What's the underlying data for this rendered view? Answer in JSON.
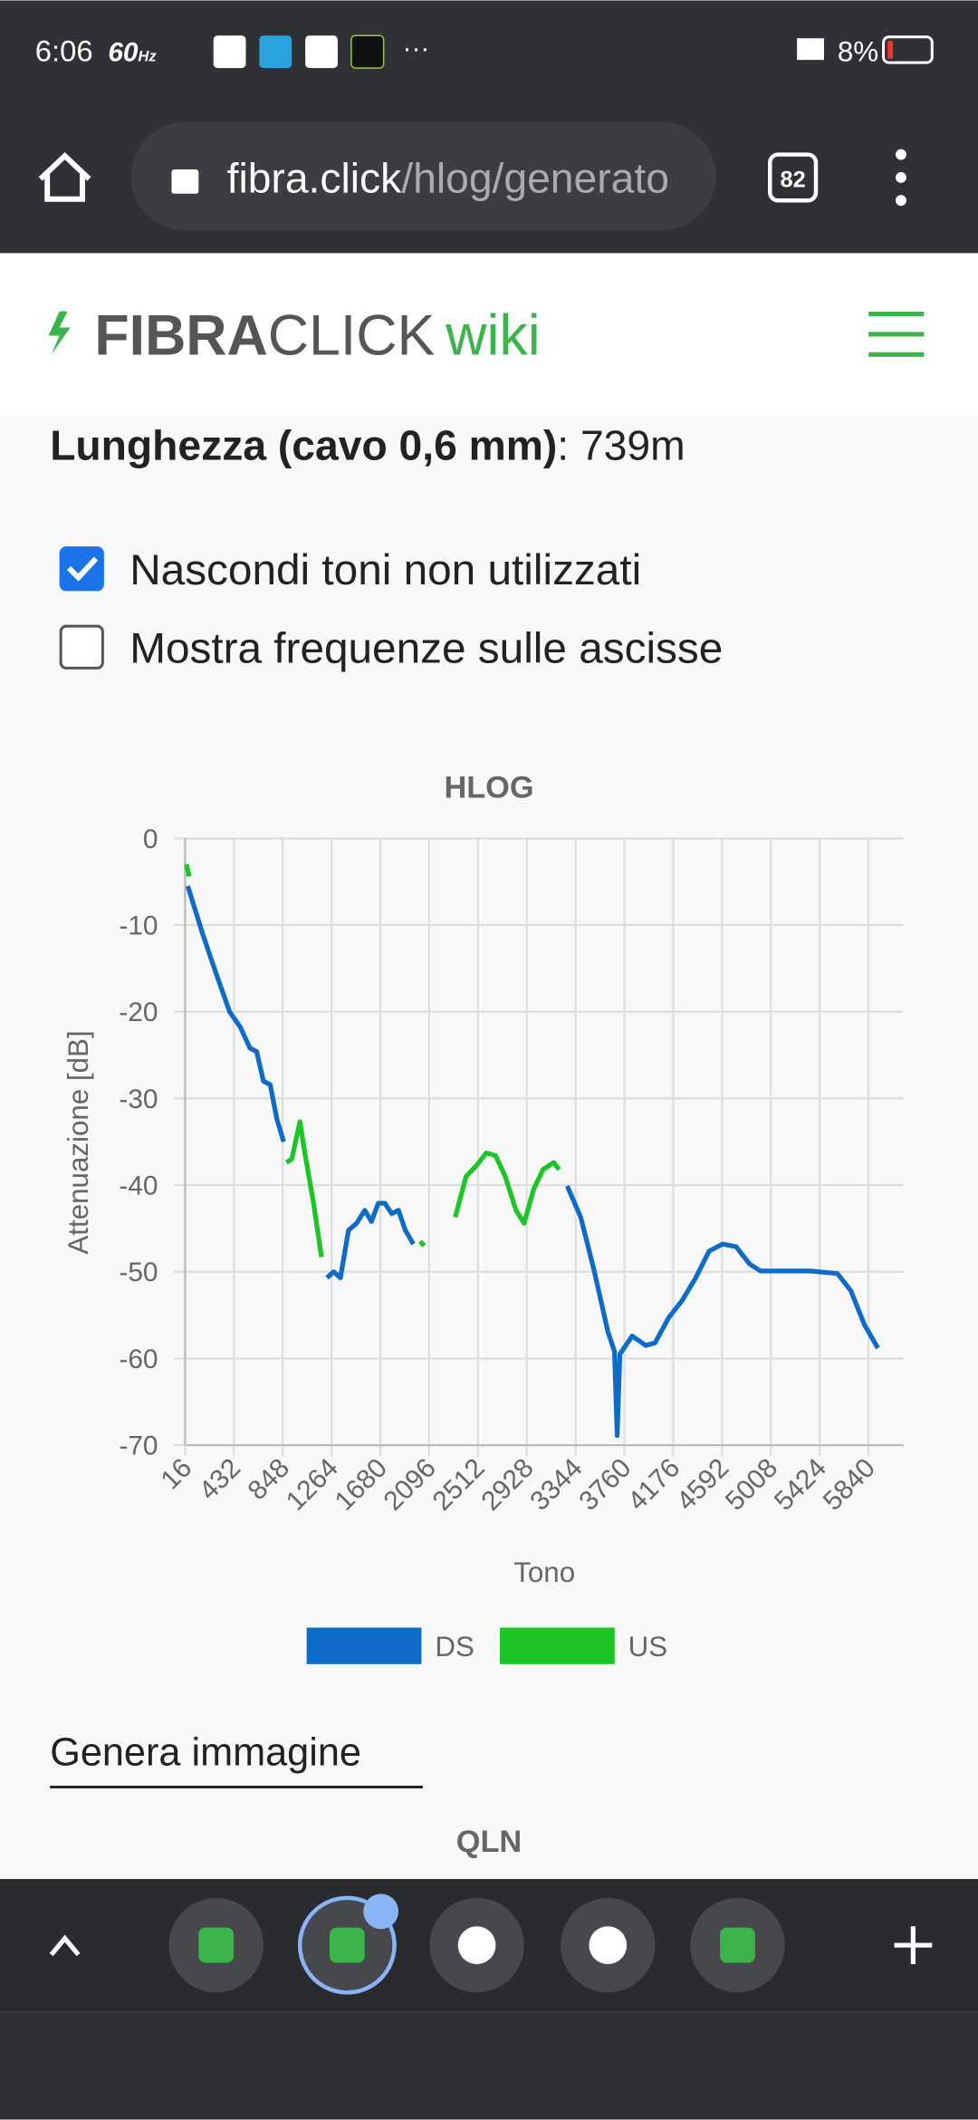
{
  "status_bar": {
    "time": "6:06",
    "refresh": "60",
    "refresh_unit": "Hz",
    "battery": "8%"
  },
  "browser": {
    "url_host": "fibra.click",
    "url_path": "/hlog/generato",
    "tab_count": "82"
  },
  "site": {
    "logo_bold": "FIBRA",
    "logo_light": "CLICK",
    "logo_wiki": "wiki"
  },
  "content": {
    "length_label": "Lunghezza (cavo 0,6 mm)",
    "length_value": ": 739m",
    "options": [
      {
        "label": "Nascondi toni non utilizzati",
        "checked": true
      },
      {
        "label": "Mostra frequenze sulle ascisse",
        "checked": false
      }
    ],
    "button": "Genera immagine",
    "next_chart_title": "QLN"
  },
  "chart_data": {
    "type": "line",
    "title": "HLOG",
    "x_label": "Tono",
    "y_label": "Attenuazione [dB]",
    "xlim": [
      16,
      6140
    ],
    "xticks": [
      16,
      432,
      848,
      1264,
      1680,
      2096,
      2512,
      2928,
      3344,
      3760,
      4176,
      4592,
      5008,
      5424,
      5840
    ],
    "ylim": [
      -70,
      0
    ],
    "yticks": [
      0,
      -10,
      -20,
      -30,
      -40,
      -50,
      -60,
      -70
    ],
    "grid": true,
    "legend": "bottom",
    "series": [
      {
        "name": "DS",
        "color": "#0f6cc6",
        "x": [
          39,
          166,
          281,
          396,
          488,
          568,
          626,
          684,
          741,
          799,
          856,
          null,
          1225,
          1282,
          1340,
          1409,
          1478,
          1547,
          1604,
          1662,
          1719,
          1777,
          1835,
          1892,
          1961,
          null,
          3273,
          3388,
          3503,
          3619,
          3676,
          3699,
          3722,
          3826,
          3941,
          4021,
          4137,
          4252,
          4367,
          4482,
          4597,
          4712,
          4827,
          4919,
          5115,
          5345,
          5575,
          5690,
          5805,
          5920
        ],
        "values": [
          -5.5,
          -11,
          -15.6,
          -20,
          -21.8,
          -24.2,
          -24.6,
          -28,
          -28.4,
          -32.4,
          -35,
          null,
          -50.7,
          -50,
          -50.7,
          -45.2,
          -44.4,
          -42.9,
          -44.2,
          -42.1,
          -42.1,
          -43.3,
          -42.9,
          -45.2,
          -46.8,
          null,
          -40.1,
          -43.7,
          -49.9,
          -56.9,
          -59.2,
          -68.9,
          -59.5,
          -57.4,
          -58.5,
          -58.2,
          -55.3,
          -53.3,
          -50.7,
          -47.6,
          -46.8,
          -47.1,
          -49.1,
          -49.9,
          -49.9,
          -49.9,
          -50.2,
          -52.2,
          -56.1,
          -58.8
        ]
      },
      {
        "name": "US",
        "color": "#1cc425",
        "x": [
          28,
          51,
          null,
          879,
          925,
          994,
          1040,
          1109,
          1179,
          null,
          2019,
          2053,
          null,
          2318,
          2410,
          2502,
          2583,
          2663,
          2744,
          2836,
          2905,
          2986,
          3066,
          3158,
          3204
        ],
        "values": [
          -3,
          -4.4,
          null,
          -37.4,
          -37,
          -32.7,
          -36.6,
          -42,
          -48.3,
          null,
          -46.5,
          -47,
          null,
          -43.7,
          -39,
          -37.7,
          -36.3,
          -36.6,
          -39,
          -42.9,
          -44.4,
          -40.5,
          -38.2,
          -37.4,
          -38.2
        ]
      }
    ]
  }
}
